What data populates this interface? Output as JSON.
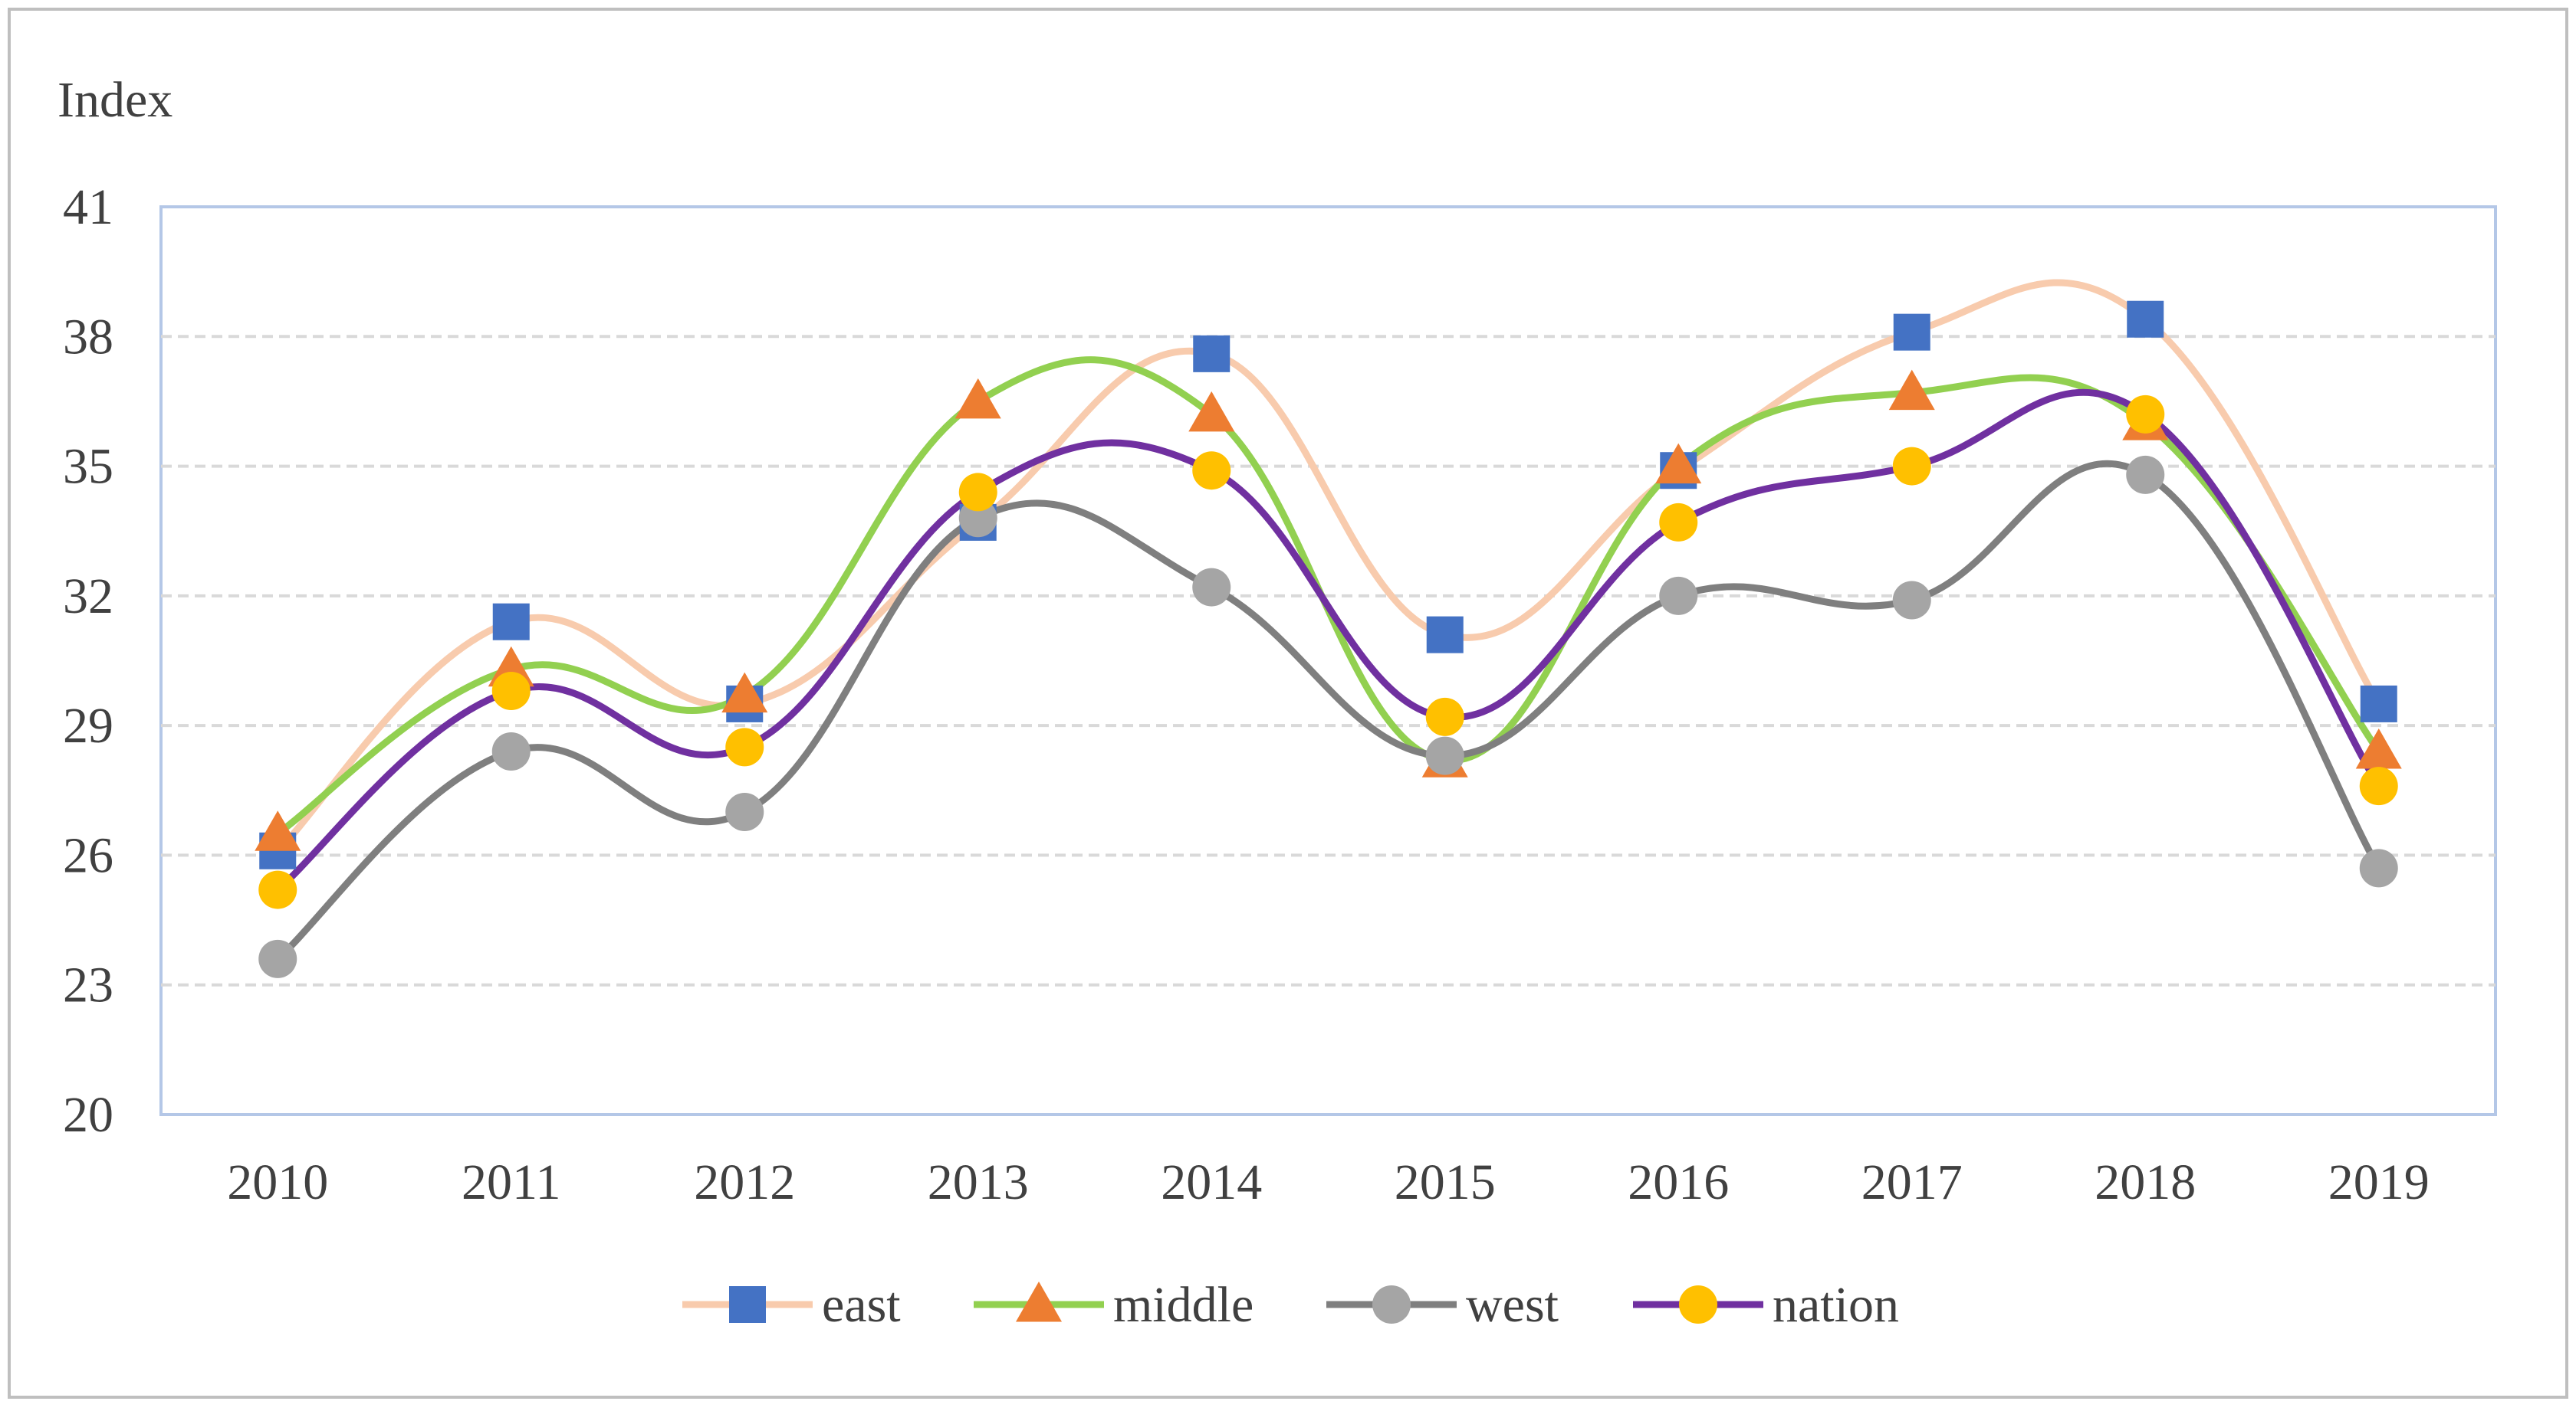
{
  "chart_data": {
    "type": "line",
    "title": "",
    "ylabel": "Index",
    "xlabel": "",
    "categories": [
      "2010",
      "2011",
      "2012",
      "2013",
      "2014",
      "2015",
      "2016",
      "2017",
      "2018",
      "2019"
    ],
    "ylim": [
      20,
      41
    ],
    "yticks": [
      "20",
      "23",
      "26",
      "29",
      "32",
      "35",
      "38",
      "41"
    ],
    "grid": true,
    "smooth": true,
    "legend_position": "bottom",
    "series": [
      {
        "name": "east",
        "color": "#F8CBAD",
        "marker": "square",
        "marker_color": "#4472C4",
        "values": [
          26.1,
          31.4,
          29.5,
          33.7,
          37.6,
          31.1,
          34.9,
          38.1,
          38.4,
          29.5
        ]
      },
      {
        "name": "middle",
        "color": "#92D050",
        "marker": "triangle",
        "marker_color": "#ED7D31",
        "values": [
          26.5,
          30.3,
          29.7,
          36.5,
          36.2,
          28.2,
          35.0,
          36.7,
          36.0,
          28.4
        ]
      },
      {
        "name": "west",
        "color": "#7F7F7F",
        "marker": "circle",
        "marker_color": "#A5A5A5",
        "values": [
          23.6,
          28.4,
          27.0,
          33.8,
          32.2,
          28.3,
          32.0,
          31.9,
          34.8,
          25.7
        ]
      },
      {
        "name": "nation",
        "color": "#7030A0",
        "marker": "circle",
        "marker_color": "#FFC000",
        "values": [
          25.2,
          29.8,
          28.5,
          34.4,
          34.9,
          29.2,
          33.7,
          35.0,
          36.2,
          27.6
        ]
      }
    ]
  }
}
